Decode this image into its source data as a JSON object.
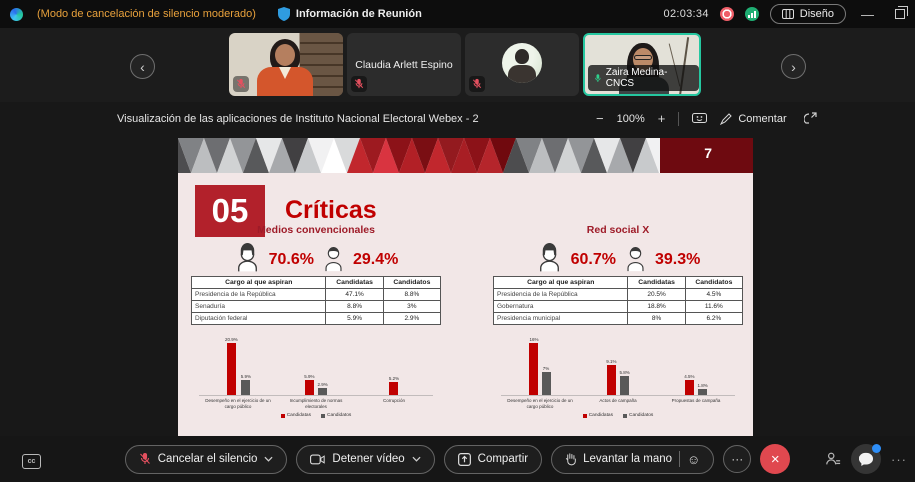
{
  "meeting": {
    "mode_banner": "(Modo de cancelación de silencio moderado)",
    "info_label": "Información de Reunión",
    "timer": "02:03:34",
    "layout_button": "Diseño"
  },
  "participants": {
    "tiles": [
      {
        "name": "",
        "muted": true
      },
      {
        "name": "Claudia Arlett Espino",
        "muted": true
      },
      {
        "name": "",
        "muted": true
      },
      {
        "name": "Zaira Medina-CNCS",
        "muted": false,
        "active_speaker": true
      }
    ]
  },
  "document": {
    "title": "Visualización de las aplicaciones de Instituto Nacional Electoral Webex - 2",
    "zoom_out": "−",
    "zoom_level": "100%",
    "zoom_in": "+",
    "comment_label": "Comentar"
  },
  "slide": {
    "page_number": "7",
    "section_number": "05",
    "title": "Críticas",
    "panels": [
      {
        "heading": "Medios convencionales",
        "female_pct": "70.6%",
        "male_pct": "29.4%",
        "table": {
          "headers": [
            "Cargo al que aspiran",
            "Candidatas",
            "Candidatos"
          ],
          "rows": [
            [
              "Presidencia de la República",
              "47.1%",
              "8.8%"
            ],
            [
              "Senaduría",
              "8.8%",
              "3%"
            ],
            [
              "Diputación federal",
              "5.9%",
              "2.9%"
            ]
          ]
        }
      },
      {
        "heading": "Red social X",
        "female_pct": "60.7%",
        "male_pct": "39.3%",
        "table": {
          "headers": [
            "Cargo al que aspiran",
            "Candidatas",
            "Candidatos"
          ],
          "rows": [
            [
              "Presidencia de la República",
              "20.5%",
              "4.5%"
            ],
            [
              "Gobernatura",
              "18.8%",
              "11.6%"
            ],
            [
              "Presidencia municipal",
              "8%",
              "6.2%"
            ]
          ]
        }
      }
    ]
  },
  "chart_data": [
    {
      "type": "bar",
      "title": "Medios convencionales — críticas",
      "categories": [
        "Desempeño en el ejercicio de un cargo público",
        "Incumplimiento de normas electorales",
        "Corrupción"
      ],
      "series": [
        {
          "name": "Candidatas",
          "color": "#c00000",
          "values": [
            20.9,
            5.9,
            5.2
          ]
        },
        {
          "name": "Candidatos",
          "color": "#595959",
          "values": [
            5.9,
            2.9,
            null
          ]
        }
      ],
      "ylim": [
        0,
        22
      ],
      "grid": false,
      "legend_position": "bottom"
    },
    {
      "type": "bar",
      "title": "Red social X — críticas",
      "categories": [
        "Desempeño en el ejercicio de un cargo público",
        "Actos de campaña",
        "Propuestas de campaña"
      ],
      "series": [
        {
          "name": "Candidatas",
          "color": "#c00000",
          "values": [
            16,
            9.1,
            4.5
          ]
        },
        {
          "name": "Candidatos",
          "color": "#595959",
          "values": [
            7,
            5.8,
            1.8
          ]
        }
      ],
      "ylim": [
        0,
        17
      ],
      "grid": false,
      "legend_position": "bottom"
    }
  ],
  "controls": {
    "unmute": "Cancelar el silencio",
    "stop_video": "Detener vídeo",
    "share": "Compartir",
    "raise_hand": "Levantar la mano",
    "captions": "cc",
    "more": "···",
    "end": "×"
  },
  "banner_colors": {
    "grays": [
      "#4d4d4f",
      "#808285",
      "#bcbec0",
      "#6d6e71",
      "#d1d3d4",
      "#939598",
      "#58595b",
      "#e6e7e8",
      "#a7a9ac",
      "#414042",
      "#c8cacc",
      "#f1f1f2",
      "#ffffff",
      "#d9dadb"
    ],
    "reds": [
      "#c1272d",
      "#9d1a20",
      "#d93440",
      "#8c1218",
      "#b22026",
      "#7a0e13",
      "#c1272d",
      "#931a1f",
      "#a81e24",
      "#8c1218",
      "#b5252b",
      "#70090e"
    ],
    "band": "#6e0a10",
    "accent_red": "#c00000",
    "active_border": "#25c7a0"
  }
}
